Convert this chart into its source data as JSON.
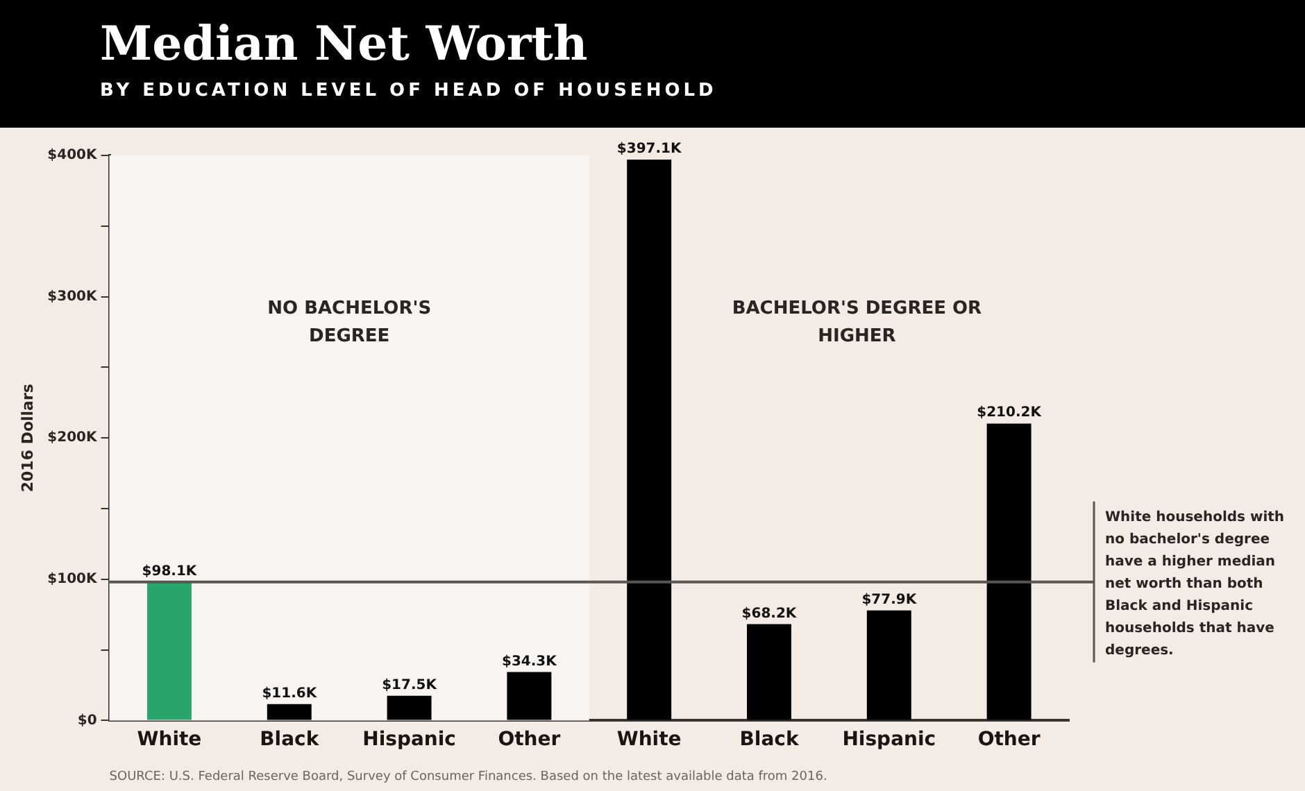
{
  "chart_data": {
    "type": "bar",
    "title": "Median Net Worth",
    "subtitle": "BY EDUCATION LEVEL OF HEAD OF HOUSEHOLD",
    "ylabel": "2016 Dollars",
    "categories": [
      "White",
      "Black",
      "Hispanic",
      "Other",
      "White",
      "Black",
      "Hispanic",
      "Other"
    ],
    "values": [
      98100,
      11600,
      17500,
      34300,
      397100,
      68200,
      77900,
      210200
    ],
    "colors": [
      "#27a56a",
      "#000000",
      "#000000",
      "#000000",
      "#000000",
      "#000000",
      "#000000",
      "#000000"
    ],
    "value_labels": [
      "$98.1K",
      "$11.6K",
      "$17.5K",
      "$34.3K",
      "$397.1K",
      "$68.2K",
      "$77.9K",
      "$210.2K"
    ],
    "ylim": [
      0,
      400000
    ],
    "yticks": [
      {
        "value": 0,
        "label": "$0"
      },
      {
        "value": 50000,
        "label": null
      },
      {
        "value": 100000,
        "label": "$100K"
      },
      {
        "value": 150000,
        "label": null
      },
      {
        "value": 200000,
        "label": "$200K"
      },
      {
        "value": 250000,
        "label": null
      },
      {
        "value": 300000,
        "label": "$300K"
      },
      {
        "value": 350000,
        "label": null
      },
      {
        "value": 400000,
        "label": "$400K"
      }
    ],
    "grid": false,
    "legend": false,
    "bands": [
      {
        "axis": "x",
        "from": "White",
        "to": "Other",
        "label": "NO BACHELOR'S DEGREE",
        "color": "#f8f4f1"
      }
    ],
    "ref_lines": [
      {
        "axis": "y",
        "value": 98100,
        "label": "White households with no bachelor's degree have a higher median net worth than both Black and Hispanic households that have degrees.",
        "color": "#5a5550"
      }
    ],
    "annotations": [
      "BACHELOR'S DEGREE OR HIGHER",
      "SOURCE: U.S. Federal Reserve Board, Survey of Consumer Finances. Based on the latest available data from 2016."
    ]
  }
}
